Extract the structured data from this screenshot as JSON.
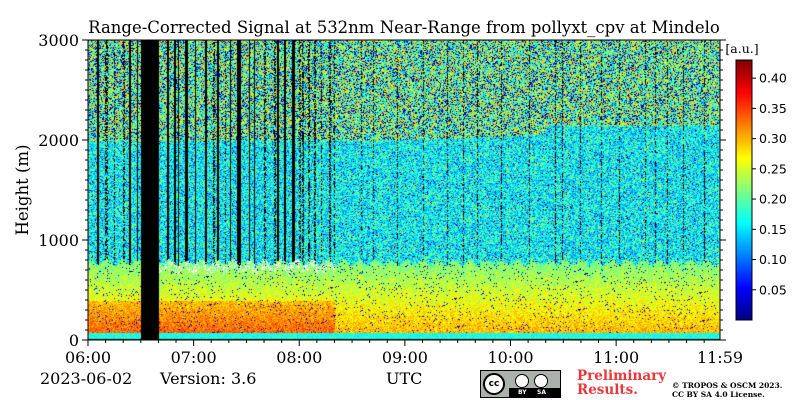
{
  "chart_data": {
    "type": "heatmap",
    "title": "Range-Corrected Signal at 532nm Near-Range from pollyxt_cpv at Mindelo",
    "xlabel": "UTC",
    "ylabel": "Height (m)",
    "x_ticks": [
      "06:00",
      "07:00",
      "08:00",
      "09:00",
      "10:00",
      "11:00",
      "11:59"
    ],
    "y_ticks": [
      0,
      1000,
      2000,
      3000
    ],
    "ylim": [
      0,
      3000
    ],
    "colorbar": {
      "unit": "[a.u.]",
      "ticks": [
        0.05,
        0.1,
        0.15,
        0.2,
        0.25,
        0.3,
        0.35,
        0.4
      ],
      "range": [
        0.0,
        0.43
      ],
      "colormap": "jet"
    },
    "layers": {
      "surface_layer_top_m": 80,
      "marine_boundary_layer_top_m": 800,
      "aerosol_layer_top_m": 2000,
      "aerosol_layer_top_late_m": 2150
    },
    "no_data_periods": [
      [
        "06:30",
        "06:40"
      ]
    ]
  },
  "footer": {
    "date": "2023-06-02",
    "version": "Version: 3.6",
    "utc": "UTC",
    "preliminary_line1": "Preliminary",
    "preliminary_line2": "Results.",
    "copyright_line1": "© TROPOS & OSCM 2023.",
    "copyright_line2": "CC BY SA 4.0 License."
  },
  "license_badge": {
    "icon": "cc-by-sa-icon",
    "labels": [
      "BY",
      "SA"
    ]
  }
}
